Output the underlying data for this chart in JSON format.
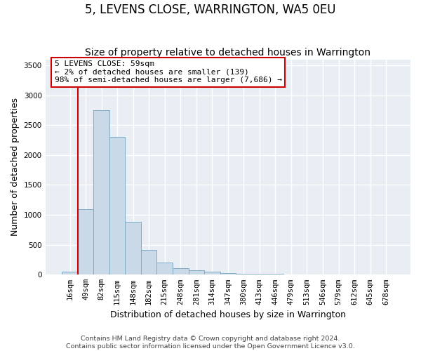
{
  "title": "5, LEVENS CLOSE, WARRINGTON, WA5 0EU",
  "subtitle": "Size of property relative to detached houses in Warrington",
  "xlabel": "Distribution of detached houses by size in Warrington",
  "ylabel": "Number of detached properties",
  "bar_color": "#c9d9e8",
  "bar_edge_color": "#7facc8",
  "background_color": "#e8eef4",
  "grid_color": "#ffffff",
  "vline_color": "#cc0000",
  "vline_index": 1,
  "categories": [
    "16sqm",
    "49sqm",
    "82sqm",
    "115sqm",
    "148sqm",
    "182sqm",
    "215sqm",
    "248sqm",
    "281sqm",
    "314sqm",
    "347sqm",
    "380sqm",
    "413sqm",
    "446sqm",
    "479sqm",
    "513sqm",
    "546sqm",
    "579sqm",
    "612sqm",
    "645sqm",
    "678sqm"
  ],
  "values": [
    50,
    1100,
    2750,
    2300,
    880,
    420,
    200,
    110,
    75,
    55,
    30,
    20,
    15,
    10,
    8,
    5,
    3,
    2,
    2,
    1,
    1
  ],
  "ylim": [
    0,
    3600
  ],
  "yticks": [
    0,
    500,
    1000,
    1500,
    2000,
    2500,
    3000,
    3500
  ],
  "annotation_text": "5 LEVENS CLOSE: 59sqm\n← 2% of detached houses are smaller (139)\n98% of semi-detached houses are larger (7,686) →",
  "footer_line1": "Contains HM Land Registry data © Crown copyright and database right 2024.",
  "footer_line2": "Contains public sector information licensed under the Open Government Licence v3.0.",
  "title_fontsize": 12,
  "subtitle_fontsize": 10,
  "label_fontsize": 9,
  "tick_fontsize": 7.5,
  "footer_fontsize": 6.8,
  "annot_fontsize": 8
}
